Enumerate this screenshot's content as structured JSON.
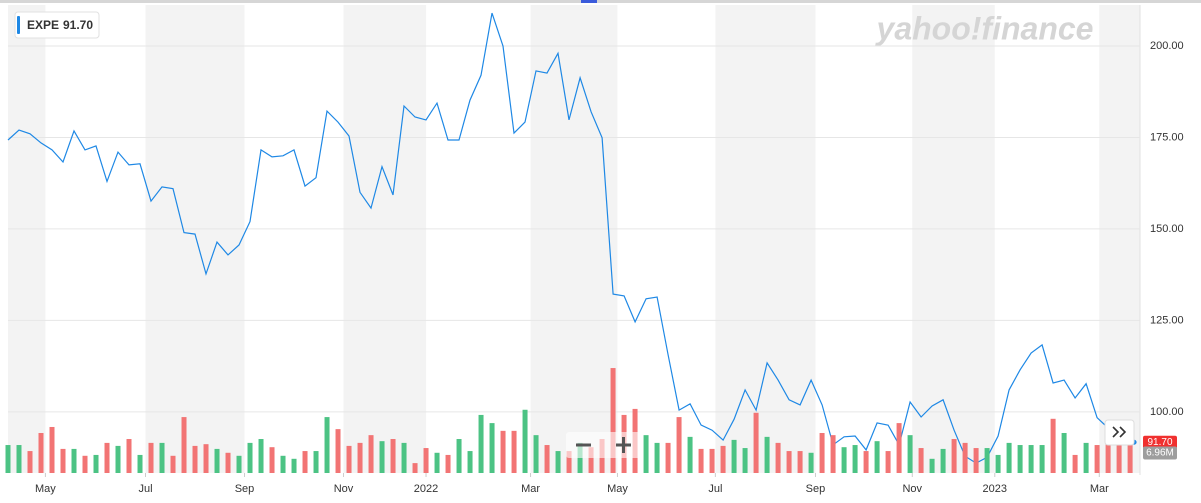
{
  "chart_data": {
    "type": "line",
    "watermark": "yahoo!finance",
    "categories": [
      null,
      null,
      null,
      null,
      null,
      null,
      null,
      null,
      null,
      null,
      null,
      null,
      null,
      null,
      null,
      null,
      null,
      null,
      null,
      null,
      null,
      null,
      null,
      null,
      null,
      null,
      null,
      null,
      null,
      null,
      null,
      null,
      null,
      null,
      null,
      null,
      null,
      null,
      null,
      null,
      null,
      null,
      null,
      null,
      null,
      null,
      null,
      null,
      null,
      null,
      null,
      null,
      null,
      null,
      null,
      null,
      null,
      null,
      null,
      null,
      null,
      null,
      null,
      null,
      null,
      null,
      null,
      null,
      null,
      null,
      null,
      null,
      null,
      null,
      null,
      null,
      null,
      null,
      null,
      null,
      null,
      null,
      null,
      null,
      null,
      null,
      null,
      null,
      null,
      null,
      null,
      null,
      null,
      null,
      null,
      null,
      null,
      null,
      null,
      null,
      null,
      null,
      null
    ],
    "xlim": [
      0,
      102.9
    ],
    "xticks": [
      {
        "value": 3.4,
        "label": "May"
      },
      {
        "value": 12.5,
        "label": "Jul"
      },
      {
        "value": 21.5,
        "label": "Sep"
      },
      {
        "value": 30.5,
        "label": "Nov"
      },
      {
        "value": 38.0,
        "label": "2022"
      },
      {
        "value": 47.5,
        "label": "Mar"
      },
      {
        "value": 55.4,
        "label": "May"
      },
      {
        "value": 64.3,
        "label": "Jul"
      },
      {
        "value": 73.4,
        "label": "Sep"
      },
      {
        "value": 82.2,
        "label": "Nov"
      },
      {
        "value": 89.7,
        "label": "2023"
      },
      {
        "value": 99.2,
        "label": "Mar"
      }
    ],
    "ylim": [
      83.3,
      211.2
    ],
    "yticks": [
      {
        "value": 100,
        "label": "100.00"
      },
      {
        "value": 125,
        "label": "125.00"
      },
      {
        "value": 150,
        "label": "150.00"
      },
      {
        "value": 175,
        "label": "175.00"
      },
      {
        "value": 200,
        "label": "200.00"
      }
    ],
    "y2lim": [
      0,
      108.8
    ],
    "grid": true,
    "series": [
      {
        "name": "EXPE",
        "color": "#1e88e5",
        "values": [
          174.3,
          177,
          176,
          173.5,
          171.6,
          168.3,
          176.8,
          171.6,
          172.7,
          163,
          171,
          167.5,
          167.8,
          157.6,
          161.5,
          161,
          149,
          148.6,
          137.7,
          146.4,
          142.9,
          145.6,
          152,
          171.6,
          169.7,
          170,
          171.6,
          161.7,
          164,
          182.2,
          179.2,
          175.4,
          160,
          155.7,
          167,
          159.3,
          183.6,
          180.6,
          179.8,
          184.4,
          174.3,
          174.3,
          185.2,
          192,
          209,
          200,
          176.2,
          179.2,
          193.2,
          192.6,
          198,
          179.8,
          191.3,
          182,
          174.9,
          132.2,
          131.7,
          124.6,
          130.9,
          131.4,
          115.6,
          100.5,
          102.2,
          96.4,
          95,
          92.3,
          98,
          106,
          100.5,
          113.4,
          108.7,
          103.3,
          101.9,
          108.7,
          101.9,
          91,
          93.2,
          93.4,
          89.6,
          97,
          96.4,
          91,
          102.7,
          98.6,
          101.6,
          103.3,
          95,
          87.9,
          86,
          87.6,
          93.4,
          106,
          111.5,
          116.1,
          118.3,
          107.9,
          108.7,
          103.8,
          107.7,
          98.4,
          95.6,
          93.7,
          91.7
        ],
        "value_labels": [
          null,
          null,
          null,
          null,
          null,
          null,
          null,
          null,
          null,
          null,
          null,
          null,
          null,
          null,
          null,
          null,
          null,
          null,
          null,
          null,
          null,
          null,
          null,
          null,
          null,
          null,
          null,
          null,
          null,
          null,
          null,
          null,
          null,
          null,
          null,
          null,
          null,
          null,
          null,
          null,
          null,
          null,
          null,
          null,
          null,
          null,
          null,
          null,
          null,
          null,
          null,
          null,
          null,
          null,
          null,
          null,
          null,
          null,
          null,
          null,
          null,
          null,
          null,
          null,
          null,
          null,
          null,
          null,
          null,
          null,
          null,
          null,
          null,
          null,
          null,
          null,
          null,
          null,
          null,
          null,
          null,
          null,
          null,
          null,
          null,
          null,
          null,
          null,
          null,
          null,
          null,
          null,
          null,
          null,
          null,
          null,
          null,
          null,
          null,
          null,
          null,
          null,
          "91.70"
        ],
        "tag_color": "#f0302f"
      },
      {
        "type": "bar",
        "axis": "y2",
        "up_color": "#4cc384",
        "down_color": "#f27474",
        "tag_color": "#9e9e9e",
        "values": [
          6.5,
          6.5,
          5.1,
          9.3,
          10.7,
          5.6,
          5.6,
          4.0,
          4.2,
          7.0,
          6.3,
          7.9,
          4.2,
          7.0,
          7.0,
          4.0,
          13.0,
          6.3,
          6.7,
          5.6,
          4.7,
          4.0,
          7.0,
          7.9,
          6.0,
          4.0,
          3.3,
          5.1,
          5.1,
          13.0,
          10.2,
          6.3,
          7.0,
          8.8,
          7.4,
          7.9,
          7.0,
          2.3,
          5.8,
          4.7,
          4.2,
          7.9,
          5.1,
          13.5,
          11.6,
          9.8,
          9.8,
          14.7,
          8.8,
          6.5,
          5.1,
          5.1,
          7.0,
          6.0,
          7.9,
          24.4,
          13.5,
          14.9,
          8.8,
          7.0,
          7.0,
          13.0,
          8.4,
          5.6,
          5.6,
          6.3,
          7.7,
          5.8,
          14.0,
          8.4,
          7.0,
          5.1,
          5.1,
          4.7,
          9.3,
          8.8,
          6.0,
          6.5,
          5.1,
          7.4,
          5.1,
          11.6,
          8.8,
          5.8,
          3.3,
          5.6,
          7.9,
          7.0,
          5.8,
          5.8,
          4.2,
          7.0,
          6.5,
          6.5,
          6.5,
          12.6,
          9.3,
          4.2,
          7.0,
          6.5,
          7.0,
          6.5,
          6.96
        ],
        "value_labels": [
          null,
          null,
          null,
          null,
          null,
          null,
          null,
          null,
          null,
          null,
          null,
          null,
          null,
          null,
          null,
          null,
          null,
          null,
          null,
          null,
          null,
          null,
          null,
          null,
          null,
          null,
          null,
          null,
          null,
          null,
          null,
          null,
          null,
          null,
          null,
          null,
          null,
          null,
          null,
          null,
          null,
          null,
          null,
          null,
          null,
          null,
          null,
          null,
          null,
          null,
          null,
          null,
          null,
          null,
          null,
          null,
          null,
          null,
          null,
          null,
          null,
          null,
          null,
          null,
          null,
          null,
          null,
          null,
          null,
          null,
          null,
          null,
          null,
          null,
          null,
          null,
          null,
          null,
          null,
          null,
          null,
          null,
          null,
          null,
          null,
          null,
          null,
          null,
          null,
          null,
          null,
          null,
          null,
          null,
          null,
          null,
          null,
          null,
          null,
          null,
          null,
          null,
          "6.96M"
        ]
      }
    ]
  }
}
